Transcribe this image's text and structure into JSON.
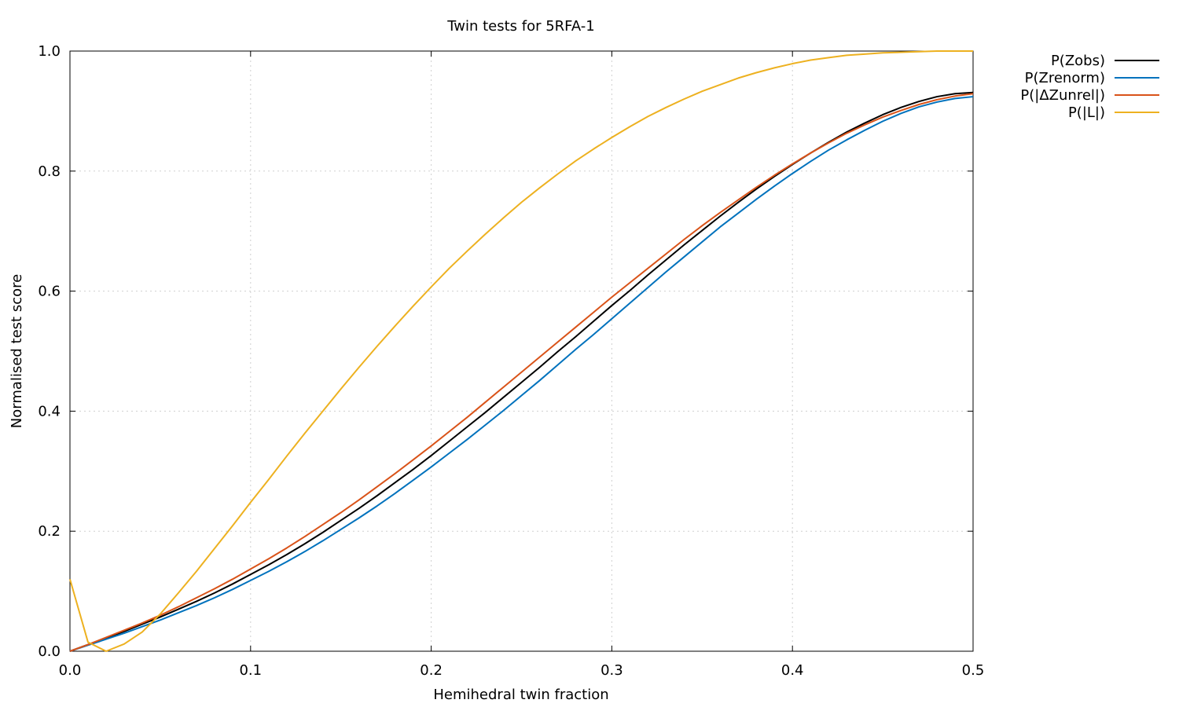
{
  "chart_data": {
    "type": "line",
    "title": "Twin tests for 5RFA-1",
    "xlabel": "Hemihedral twin fraction",
    "ylabel": "Normalised test score",
    "xlim": [
      0.0,
      0.5
    ],
    "ylim": [
      0.0,
      1.0
    ],
    "xticks": [
      "0.0",
      "0.1",
      "0.2",
      "0.3",
      "0.4",
      "0.5"
    ],
    "yticks": [
      "0.0",
      "0.2",
      "0.4",
      "0.6",
      "0.8",
      "1.0"
    ],
    "grid": true,
    "legend_position": "outside-top-right",
    "x": [
      0.0,
      0.01,
      0.02,
      0.03,
      0.04,
      0.05,
      0.06,
      0.07,
      0.08,
      0.09,
      0.1,
      0.11,
      0.12,
      0.13,
      0.14,
      0.15,
      0.16,
      0.17,
      0.18,
      0.19,
      0.2,
      0.21,
      0.22,
      0.23,
      0.24,
      0.25,
      0.26,
      0.27,
      0.28,
      0.29,
      0.3,
      0.31,
      0.32,
      0.33,
      0.34,
      0.35,
      0.36,
      0.37,
      0.38,
      0.39,
      0.4,
      0.41,
      0.42,
      0.43,
      0.44,
      0.45,
      0.46,
      0.47,
      0.48,
      0.49,
      0.5
    ],
    "series": [
      {
        "name": "P(Zobs)",
        "color": "#000000",
        "values": [
          0.0,
          0.011,
          0.022,
          0.033,
          0.045,
          0.057,
          0.07,
          0.083,
          0.097,
          0.112,
          0.128,
          0.144,
          0.161,
          0.179,
          0.198,
          0.218,
          0.238,
          0.259,
          0.281,
          0.303,
          0.326,
          0.35,
          0.374,
          0.398,
          0.423,
          0.448,
          0.473,
          0.499,
          0.524,
          0.55,
          0.576,
          0.601,
          0.627,
          0.652,
          0.677,
          0.701,
          0.725,
          0.748,
          0.77,
          0.791,
          0.811,
          0.83,
          0.848,
          0.865,
          0.88,
          0.894,
          0.906,
          0.916,
          0.924,
          0.929,
          0.931
        ]
      },
      {
        "name": "P(Zrenorm)",
        "color": "#0072bd",
        "values": [
          0.0,
          0.01,
          0.02,
          0.03,
          0.041,
          0.052,
          0.064,
          0.076,
          0.089,
          0.103,
          0.118,
          0.133,
          0.149,
          0.166,
          0.184,
          0.203,
          0.222,
          0.242,
          0.263,
          0.285,
          0.307,
          0.33,
          0.353,
          0.377,
          0.401,
          0.426,
          0.451,
          0.477,
          0.503,
          0.528,
          0.554,
          0.58,
          0.606,
          0.632,
          0.657,
          0.682,
          0.707,
          0.73,
          0.753,
          0.775,
          0.796,
          0.816,
          0.835,
          0.852,
          0.868,
          0.883,
          0.896,
          0.907,
          0.915,
          0.921,
          0.924
        ]
      },
      {
        "name": "P(|ΔZunrel|)",
        "color": "#d95319",
        "values": [
          0.0,
          0.011,
          0.023,
          0.035,
          0.047,
          0.06,
          0.074,
          0.089,
          0.104,
          0.12,
          0.137,
          0.154,
          0.172,
          0.191,
          0.211,
          0.231,
          0.252,
          0.274,
          0.296,
          0.319,
          0.342,
          0.366,
          0.39,
          0.415,
          0.44,
          0.465,
          0.49,
          0.515,
          0.54,
          0.565,
          0.59,
          0.614,
          0.638,
          0.662,
          0.686,
          0.709,
          0.731,
          0.752,
          0.773,
          0.793,
          0.812,
          0.83,
          0.847,
          0.863,
          0.877,
          0.89,
          0.901,
          0.911,
          0.919,
          0.925,
          0.929
        ]
      },
      {
        "name": "P(|L|)",
        "color": "#edb120",
        "values": [
          0.12,
          0.015,
          0.0,
          0.012,
          0.032,
          0.062,
          0.097,
          0.133,
          0.171,
          0.209,
          0.248,
          0.286,
          0.325,
          0.363,
          0.4,
          0.437,
          0.473,
          0.508,
          0.542,
          0.575,
          0.607,
          0.638,
          0.667,
          0.695,
          0.722,
          0.748,
          0.772,
          0.795,
          0.817,
          0.837,
          0.856,
          0.874,
          0.891,
          0.906,
          0.92,
          0.933,
          0.944,
          0.955,
          0.964,
          0.972,
          0.979,
          0.985,
          0.989,
          0.993,
          0.995,
          0.997,
          0.998,
          0.999,
          1.0,
          1.0,
          1.0
        ]
      }
    ]
  }
}
